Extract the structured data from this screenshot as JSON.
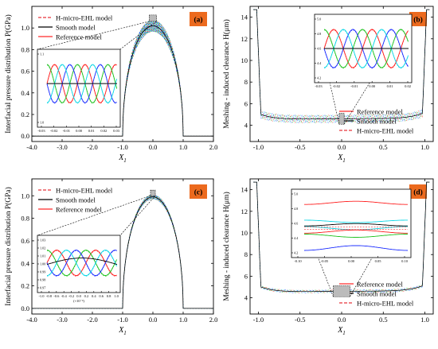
{
  "panels": [
    {
      "id": "a",
      "badge": "(a)",
      "ylabel": "Interfacial pressure distribution P(GPa)",
      "xlabel": "X",
      "xlabel_sub": "1",
      "legend": [
        "H-micro-EHL model",
        "Smooth model",
        "Reference model"
      ],
      "xticks": [
        "-4.0",
        "-3.0",
        "-2.0",
        "-1.0",
        "0.0",
        "1.0",
        "2.0"
      ],
      "yticks": [
        "0.0",
        "0.2",
        "0.4",
        "0.6",
        "0.8",
        "1.0"
      ],
      "inset_xticks": [
        "-0.03",
        "-0.02",
        "-0.01",
        "0.00",
        "0.01",
        "0.02",
        "0.03"
      ],
      "inset_yticks": [
        "1.0",
        "1.1"
      ]
    },
    {
      "id": "b",
      "badge": "(b)",
      "ylabel": "Meshing - induced clearance H(μm)",
      "xlabel": "X",
      "xlabel_sub": "1",
      "legend": [
        "Reference model",
        "Smooth model",
        "H-micro-EHL model"
      ],
      "xticks": [
        "-1.0",
        "-0.5",
        "0.0",
        "0.5",
        "1.0"
      ],
      "yticks": [
        "4",
        "6",
        "8",
        "10",
        "12",
        "14"
      ],
      "inset_xticks": [
        "-0.03",
        "-0.02",
        "-0.01",
        "0.00",
        "0.01",
        "0.02"
      ],
      "inset_yticks": [
        "4.2",
        "4.4",
        "4.6",
        "4.8",
        "5.0"
      ]
    },
    {
      "id": "c",
      "badge": "(c)",
      "ylabel": "Interfacial pressure distribution P(GPa)",
      "xlabel": "X",
      "xlabel_sub": "1",
      "legend": [
        "H-micro-EHL model",
        "Smooth model",
        "Reference model"
      ],
      "xticks": [
        "-4.0",
        "-3.0",
        "-2.0",
        "-1.0",
        "0.0",
        "1.0",
        "2.0"
      ],
      "yticks": [
        "0.0",
        "0.2",
        "0.4",
        "0.6",
        "0.8",
        "1.0"
      ],
      "inset_xticks": [
        "-1.0",
        "-0.8",
        "-0.6",
        "-0.4",
        "-0.2",
        "0.0",
        "0.2",
        "0.4",
        "0.6",
        "0.8",
        "1.0"
      ],
      "inset_xunit": "(×10⁻²)",
      "inset_yticks": [
        "0.97",
        "0.98",
        "0.99",
        "1.00",
        "1.01",
        "1.02",
        "1.03"
      ]
    },
    {
      "id": "d",
      "badge": "(d)",
      "ylabel": "Meshing - induced clearance H(μm)",
      "xlabel": "X",
      "xlabel_sub": "1",
      "legend": [
        "Reference model",
        "Smooth model",
        "H-micro-EHL model"
      ],
      "xticks": [
        "-1.0",
        "-0.5",
        "0.0",
        "0.5",
        "1.0"
      ],
      "yticks": [
        "4",
        "6",
        "8",
        "10",
        "12",
        "14"
      ],
      "inset_xticks": [
        "-0.10",
        "-0.05",
        "0.00",
        "0.05",
        "0.10"
      ],
      "inset_yticks": [
        "4.2",
        "4.4",
        "4.6",
        "4.8",
        "5.0"
      ]
    }
  ],
  "colors": {
    "reference": "#ff2a2a",
    "smooth": "#000000",
    "hmicro": "#e8343a",
    "badge": "#ec6a1e",
    "cycle": [
      "#ff2020",
      "#21c321",
      "#1f30ff",
      "#10d7e6"
    ]
  },
  "chart_data": [
    {
      "type": "line",
      "panel": "a",
      "xlabel": "X1",
      "ylabel": "Interfacial pressure distribution P(GPa)",
      "xlim": [
        -4.0,
        2.0
      ],
      "ylim": [
        -0.05,
        1.2
      ],
      "series": [
        {
          "name": "Reference model",
          "x": [
            -4.0,
            -1.0,
            -0.8,
            -0.6,
            -0.4,
            -0.2,
            0.0,
            0.2,
            0.4,
            0.6,
            0.8,
            1.0,
            2.0
          ],
          "y": [
            0,
            0,
            0.6,
            0.8,
            0.92,
            0.98,
            1.06,
            0.98,
            0.92,
            0.8,
            0.6,
            0,
            0
          ]
        },
        {
          "name": "Smooth model",
          "x": [
            -4.0,
            -1.0,
            -0.8,
            -0.6,
            -0.4,
            -0.2,
            0.0,
            0.2,
            0.4,
            0.6,
            0.8,
            1.0,
            2.0
          ],
          "y": [
            0,
            0,
            0.6,
            0.8,
            0.92,
            0.98,
            1.0,
            0.98,
            0.92,
            0.8,
            0.6,
            0,
            0
          ]
        },
        {
          "name": "H-micro-EHL model",
          "x": [
            -4.0,
            -1.0,
            -0.8,
            -0.6,
            -0.4,
            -0.2,
            0.0,
            0.2,
            0.4,
            0.6,
            0.8,
            1.0,
            2.0
          ],
          "y": [
            0,
            0,
            0.62,
            0.82,
            0.95,
            1.02,
            1.1,
            1.02,
            0.95,
            0.82,
            0.62,
            0,
            0
          ]
        }
      ]
    },
    {
      "type": "line",
      "panel": "b",
      "xlabel": "X1",
      "ylabel": "Meshing - induced clearance H(μm)",
      "xlim": [
        -1.1,
        1.1
      ],
      "ylim": [
        2.5,
        15.0
      ],
      "series": [
        {
          "name": "Reference model",
          "x": [
            -1.05,
            -0.98,
            -0.9,
            -0.5,
            0.0,
            0.5,
            0.9,
            0.98,
            1.05
          ],
          "y": [
            14.5,
            6.0,
            5.0,
            4.6,
            4.6,
            4.7,
            5.0,
            6.0,
            14.5
          ]
        },
        {
          "name": "Smooth model",
          "x": [
            -1.05,
            -0.98,
            -0.9,
            -0.5,
            0.0,
            0.5,
            0.9,
            0.98,
            1.05
          ],
          "y": [
            14.5,
            6.0,
            5.0,
            4.6,
            4.6,
            4.7,
            5.0,
            6.0,
            14.5
          ]
        },
        {
          "name": "H-micro-EHL model",
          "x": [
            -1.05,
            -0.98,
            -0.9,
            -0.5,
            0.0,
            0.5,
            0.9,
            0.98,
            1.05
          ],
          "y": [
            14.5,
            6.0,
            5.0,
            4.6,
            4.6,
            4.7,
            5.0,
            6.0,
            14.5
          ]
        }
      ]
    },
    {
      "type": "line",
      "panel": "c",
      "xlabel": "X1",
      "ylabel": "Interfacial pressure distribution P(GPa)",
      "xlim": [
        -4.0,
        2.0
      ],
      "ylim": [
        -0.05,
        1.15
      ],
      "series": [
        {
          "name": "Reference model",
          "x": [
            -4.0,
            -1.0,
            -0.8,
            -0.6,
            -0.4,
            -0.2,
            0.0,
            0.2,
            0.4,
            0.6,
            0.8,
            1.0,
            2.0
          ],
          "y": [
            0,
            0,
            0.6,
            0.8,
            0.92,
            0.98,
            1.0,
            0.98,
            0.92,
            0.8,
            0.6,
            0,
            0
          ]
        },
        {
          "name": "Smooth model",
          "x": [
            -4.0,
            -1.0,
            -0.8,
            -0.6,
            -0.4,
            -0.2,
            0.0,
            0.2,
            0.4,
            0.6,
            0.8,
            1.0,
            2.0
          ],
          "y": [
            0,
            0,
            0.6,
            0.8,
            0.92,
            0.98,
            1.0,
            0.98,
            0.92,
            0.8,
            0.6,
            0,
            0
          ]
        },
        {
          "name": "H-micro-EHL model",
          "x": [
            -4.0,
            -1.0,
            -0.8,
            -0.6,
            -0.4,
            -0.2,
            0.0,
            0.2,
            0.4,
            0.6,
            0.8,
            1.0,
            2.0
          ],
          "y": [
            0,
            0,
            0.61,
            0.81,
            0.93,
            0.99,
            1.02,
            0.99,
            0.93,
            0.81,
            0.61,
            0,
            0
          ]
        }
      ]
    },
    {
      "type": "line",
      "panel": "d",
      "xlabel": "X1",
      "ylabel": "Meshing - induced clearance H(μm)",
      "xlim": [
        -1.1,
        1.1
      ],
      "ylim": [
        2.5,
        15.0
      ],
      "series": [
        {
          "name": "Reference model",
          "x": [
            -1.05,
            -0.98,
            -0.9,
            -0.5,
            0.0,
            0.5,
            0.9,
            0.98,
            1.05
          ],
          "y": [
            14.5,
            6.0,
            5.0,
            4.6,
            4.6,
            4.7,
            5.0,
            6.0,
            14.5
          ]
        },
        {
          "name": "Smooth model",
          "x": [
            -1.05,
            -0.98,
            -0.9,
            -0.5,
            0.0,
            0.5,
            0.9,
            0.98,
            1.05
          ],
          "y": [
            14.5,
            6.0,
            5.0,
            4.6,
            4.6,
            4.7,
            5.0,
            6.0,
            14.5
          ]
        },
        {
          "name": "H-micro-EHL model",
          "x": [
            -1.05,
            -0.98,
            -0.9,
            -0.5,
            0.0,
            0.5,
            0.9,
            0.98,
            1.05
          ],
          "y": [
            14.5,
            6.0,
            5.0,
            4.6,
            4.6,
            4.7,
            5.0,
            6.0,
            14.5
          ]
        }
      ]
    }
  ]
}
